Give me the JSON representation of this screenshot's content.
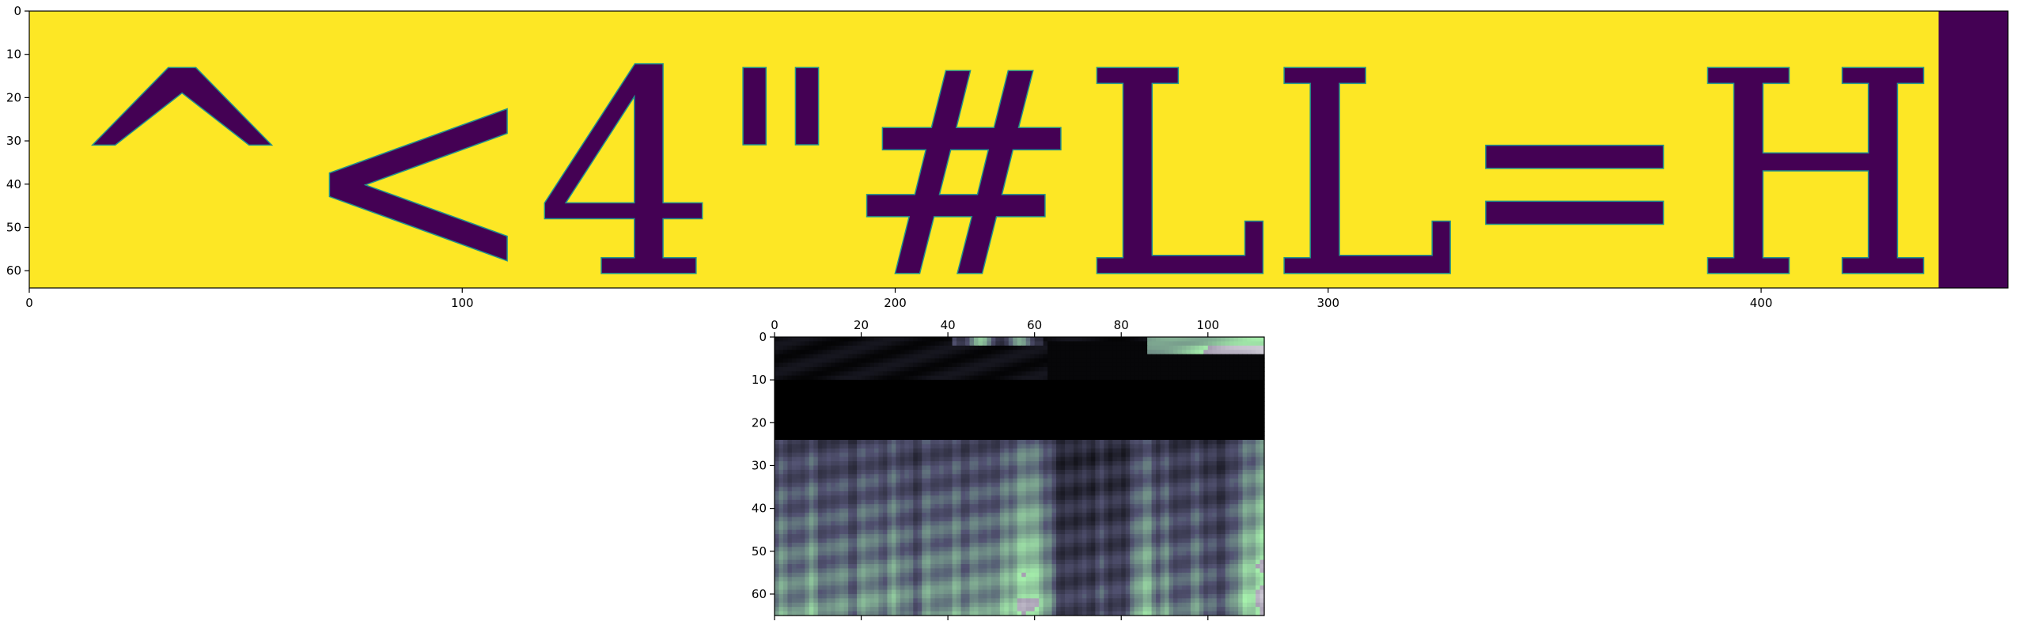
{
  "chart_data": [
    {
      "type": "heatmap",
      "name": "rendered-text-image",
      "colormap": "viridis",
      "text_content": "^<4\"#LL=H",
      "x_ticks": [
        "0",
        "100",
        "200",
        "300",
        "400"
      ],
      "y_ticks": [
        "0",
        "10",
        "20",
        "30",
        "40",
        "50",
        "60"
      ],
      "xlim": [
        0,
        457
      ],
      "ylim": [
        64,
        0
      ],
      "text_extent_x": 441,
      "colors": {
        "background": "#fde725",
        "ink": "#440154",
        "edge": "#21918c"
      }
    },
    {
      "type": "heatmap",
      "name": "feature-map",
      "colormap": "bone",
      "x_ticks": [
        "0",
        "20",
        "40",
        "60",
        "80",
        "100"
      ],
      "y_ticks": [
        "0",
        "10",
        "20",
        "30",
        "40",
        "50",
        "60"
      ],
      "xlim": [
        0,
        113
      ],
      "ylim": [
        65,
        0
      ],
      "dark_band_rows": [
        10,
        23
      ],
      "column_profile": [
        0.5,
        0.55,
        0.56,
        0.52,
        0.48,
        0.46,
        0.52,
        0.58,
        0.6,
        0.55,
        0.5,
        0.47,
        0.45,
        0.48,
        0.55,
        0.52,
        0.48,
        0.45,
        0.44,
        0.5,
        0.56,
        0.58,
        0.54,
        0.5,
        0.48,
        0.5,
        0.55,
        0.58,
        0.56,
        0.52,
        0.48,
        0.45,
        0.42,
        0.45,
        0.52,
        0.58,
        0.56,
        0.5,
        0.48,
        0.52,
        0.55,
        0.58,
        0.54,
        0.5,
        0.5,
        0.52,
        0.55,
        0.56,
        0.52,
        0.5,
        0.52,
        0.56,
        0.6,
        0.62,
        0.63,
        0.68,
        0.72,
        0.75,
        0.78,
        0.76,
        0.7,
        0.65,
        0.6,
        0.55,
        0.4,
        0.32,
        0.3,
        0.28,
        0.28,
        0.3,
        0.32,
        0.3,
        0.28,
        0.3,
        0.35,
        0.38,
        0.36,
        0.32,
        0.3,
        0.3,
        0.32,
        0.38,
        0.45,
        0.55,
        0.62,
        0.66,
        0.6,
        0.52,
        0.48,
        0.5,
        0.54,
        0.48,
        0.42,
        0.38,
        0.4,
        0.46,
        0.52,
        0.5,
        0.46,
        0.42,
        0.4,
        0.38,
        0.36,
        0.38,
        0.42,
        0.48,
        0.56,
        0.62,
        0.68,
        0.7,
        0.74,
        0.78,
        0.8
      ]
    }
  ]
}
